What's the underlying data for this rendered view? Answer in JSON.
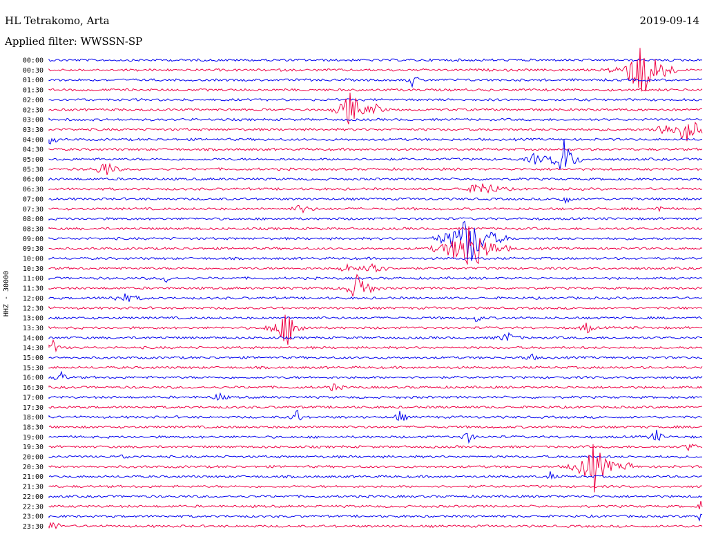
{
  "header": {
    "station": "HL Tetrakomo, Arta",
    "date": "2019-09-14",
    "filter": "Applied filter: WWSSN-SP"
  },
  "axis_label": "HHZ - 30000",
  "colors": {
    "trace_a": "#0000ee",
    "trace_b": "#ee0044",
    "text": "#000000"
  },
  "time_labels": [
    "00:00",
    "00:30",
    "01:00",
    "01:30",
    "02:00",
    "02:30",
    "03:00",
    "03:30",
    "04:00",
    "04:30",
    "05:00",
    "05:30",
    "06:00",
    "06:30",
    "07:00",
    "07:30",
    "08:00",
    "08:30",
    "09:00",
    "09:30",
    "10:00",
    "10:30",
    "11:00",
    "11:30",
    "12:00",
    "12:30",
    "13:00",
    "13:30",
    "14:00",
    "14:30",
    "15:00",
    "15:30",
    "16:00",
    "16:30",
    "17:00",
    "17:30",
    "18:00",
    "18:30",
    "19:00",
    "19:30",
    "20:00",
    "20:30",
    "21:00",
    "21:30",
    "22:00",
    "22:30",
    "23:00",
    "23:30"
  ]
}
